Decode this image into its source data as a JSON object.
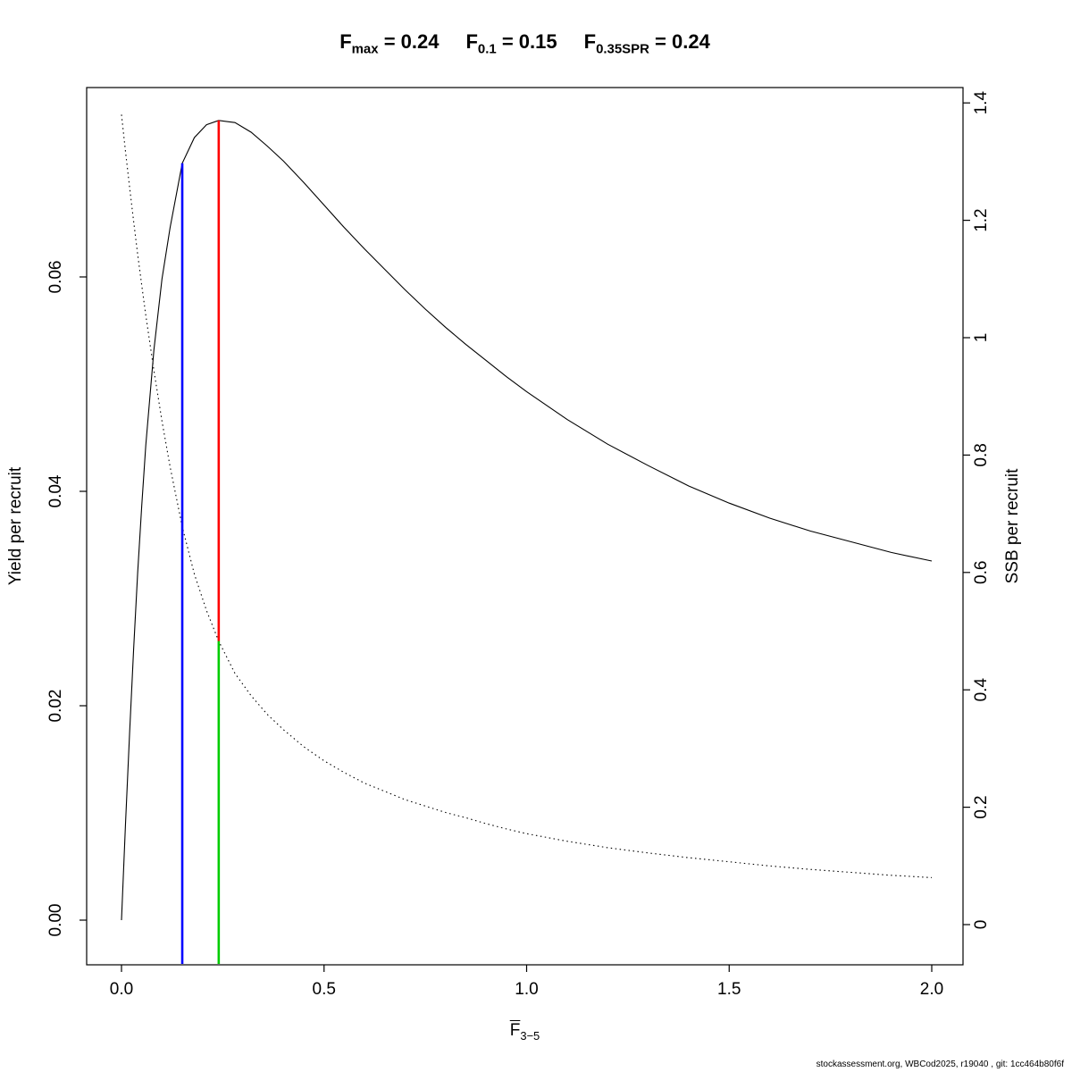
{
  "title": {
    "segments": [
      {
        "base": "F",
        "sub": "max",
        "value": "0.24"
      },
      {
        "base": "F",
        "sub": "0.1",
        "value": "0.15"
      },
      {
        "base": "F",
        "sub": "0.35SPR",
        "value": "0.24"
      }
    ],
    "equals": " = "
  },
  "footer": {
    "text": "stockassessment.org, WBCod2025, r19040 , git: 1cc464b80f6f"
  },
  "chart_data": {
    "type": "line",
    "title": "Fmax = 0.24, F0.1 = 0.15, F0.35SPR = 0.24",
    "grid": false,
    "legend": "none",
    "x_axis": {
      "label_base": "F",
      "label_overline": true,
      "label_sub": "3−5",
      "ticks": [
        0,
        0.5,
        1,
        1.5,
        2
      ],
      "tick_labels": [
        "0.0",
        "0.5",
        "1.0",
        "1.5",
        "2.0"
      ],
      "range": [
        0,
        2.08
      ]
    },
    "y_left": {
      "label": "Yield per recruit",
      "ticks": [
        0,
        0.02,
        0.04,
        0.06
      ],
      "tick_labels": [
        "0.00",
        "0.02",
        "0.04",
        "0.06"
      ],
      "range": [
        0,
        0.078
      ]
    },
    "y_right": {
      "label": "SSB per recruit",
      "ticks": [
        0,
        0.2,
        0.4,
        0.6,
        0.8,
        1,
        1.2,
        1.4
      ],
      "tick_labels": [
        "0",
        "0.2",
        "0.4",
        "0.6",
        "0.8",
        "1",
        "1.2",
        "1.4"
      ],
      "range": [
        0,
        1.44
      ]
    },
    "series": [
      {
        "name": "yield-per-recruit",
        "axis": "left",
        "line_style": "solid",
        "color": "#000000",
        "x": [
          0,
          0.01,
          0.02,
          0.03,
          0.04,
          0.05,
          0.06,
          0.08,
          0.1,
          0.12,
          0.15,
          0.18,
          0.21,
          0.24,
          0.28,
          0.32,
          0.36,
          0.4,
          0.45,
          0.5,
          0.55,
          0.6,
          0.65,
          0.7,
          0.75,
          0.8,
          0.85,
          0.9,
          0.95,
          1.0,
          1.1,
          1.2,
          1.3,
          1.4,
          1.5,
          1.6,
          1.7,
          1.8,
          1.9,
          2.0
        ],
        "y": [
          0,
          0.009,
          0.0175,
          0.0253,
          0.0324,
          0.0387,
          0.0443,
          0.0532,
          0.0598,
          0.0646,
          0.0706,
          0.073,
          0.0742,
          0.0746,
          0.0744,
          0.0735,
          0.0722,
          0.0708,
          0.0688,
          0.0667,
          0.0646,
          0.0626,
          0.0607,
          0.0588,
          0.057,
          0.0553,
          0.0537,
          0.0522,
          0.0507,
          0.0493,
          0.0467,
          0.0444,
          0.0424,
          0.0405,
          0.0389,
          0.0375,
          0.0363,
          0.0353,
          0.0343,
          0.0335
        ]
      },
      {
        "name": "ssb-per-recruit",
        "axis": "right",
        "line_style": "dotted",
        "color": "#000000",
        "x": [
          0,
          0.01,
          0.02,
          0.03,
          0.04,
          0.05,
          0.06,
          0.08,
          0.1,
          0.12,
          0.15,
          0.18,
          0.21,
          0.24,
          0.28,
          0.32,
          0.36,
          0.4,
          0.45,
          0.5,
          0.55,
          0.6,
          0.65,
          0.7,
          0.75,
          0.8,
          0.85,
          0.9,
          0.95,
          1.0,
          1.1,
          1.2,
          1.3,
          1.4,
          1.5,
          1.6,
          1.7,
          1.8,
          1.9,
          2.0
        ],
        "y": [
          1.38,
          1.317,
          1.256,
          1.198,
          1.142,
          1.089,
          1.038,
          0.944,
          0.858,
          0.78,
          0.678,
          0.597,
          0.535,
          0.483,
          0.428,
          0.39,
          0.358,
          0.332,
          0.303,
          0.279,
          0.259,
          0.241,
          0.227,
          0.213,
          0.202,
          0.191,
          0.182,
          0.172,
          0.163,
          0.155,
          0.142,
          0.131,
          0.122,
          0.114,
          0.107,
          0.1,
          0.094,
          0.089,
          0.084,
          0.08
        ]
      }
    ],
    "reference_lines": [
      {
        "name": "F0.1",
        "value_label": "0.15",
        "color": "#0000ff",
        "x": 0.15,
        "top": {
          "axis": "left",
          "value": 0.0706
        },
        "bottom": {
          "axis": "plot-bottom"
        }
      },
      {
        "name": "Fmax",
        "value_label": "0.24",
        "color": "#ff0000",
        "x": 0.24,
        "top": {
          "axis": "left",
          "value": 0.0746
        },
        "bottom": {
          "axis": "right",
          "value": 0.483
        }
      },
      {
        "name": "F0.35SPR",
        "value_label": "0.24",
        "color": "#00cc00",
        "x": 0.24,
        "top": {
          "axis": "right",
          "value": 0.483
        },
        "bottom": {
          "axis": "plot-bottom"
        }
      }
    ]
  }
}
